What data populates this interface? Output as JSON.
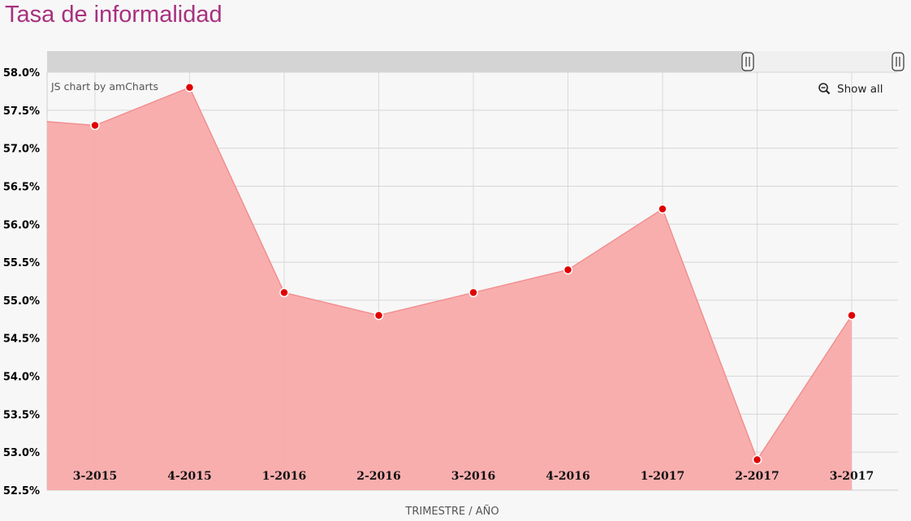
{
  "title": "Tasa de informalidad",
  "credit": "JS chart by amCharts",
  "show_all_label": "Show all",
  "colors": {
    "title": "#a8317f",
    "area": "#f9aaaa",
    "line": "#f28f8f",
    "point": "#e00000"
  },
  "chart_data": {
    "type": "area",
    "title": "Tasa de informalidad",
    "xlabel": "TRIMESTRE / AÑO",
    "ylabel": "",
    "categories": [
      "3-2015",
      "4-2015",
      "1-2016",
      "2-2016",
      "3-2016",
      "4-2016",
      "1-2017",
      "2-2017",
      "3-2017"
    ],
    "values": [
      57.3,
      57.8,
      55.1,
      54.8,
      55.1,
      55.4,
      56.2,
      52.9,
      54.8
    ],
    "ylim": [
      52.5,
      58.0
    ],
    "ytick_values": [
      52.5,
      53.0,
      53.5,
      54.0,
      54.5,
      55.0,
      55.5,
      56.0,
      56.5,
      57.0,
      57.5,
      58.0
    ],
    "ytick_labels": [
      "52.5%",
      "53.0%",
      "53.5%",
      "54.0%",
      "54.5%",
      "55.0%",
      "55.5%",
      "56.0%",
      "56.5%",
      "57.0%",
      "57.5%",
      "58.0%"
    ],
    "grid": true,
    "legend": "none",
    "value_format": "%"
  }
}
